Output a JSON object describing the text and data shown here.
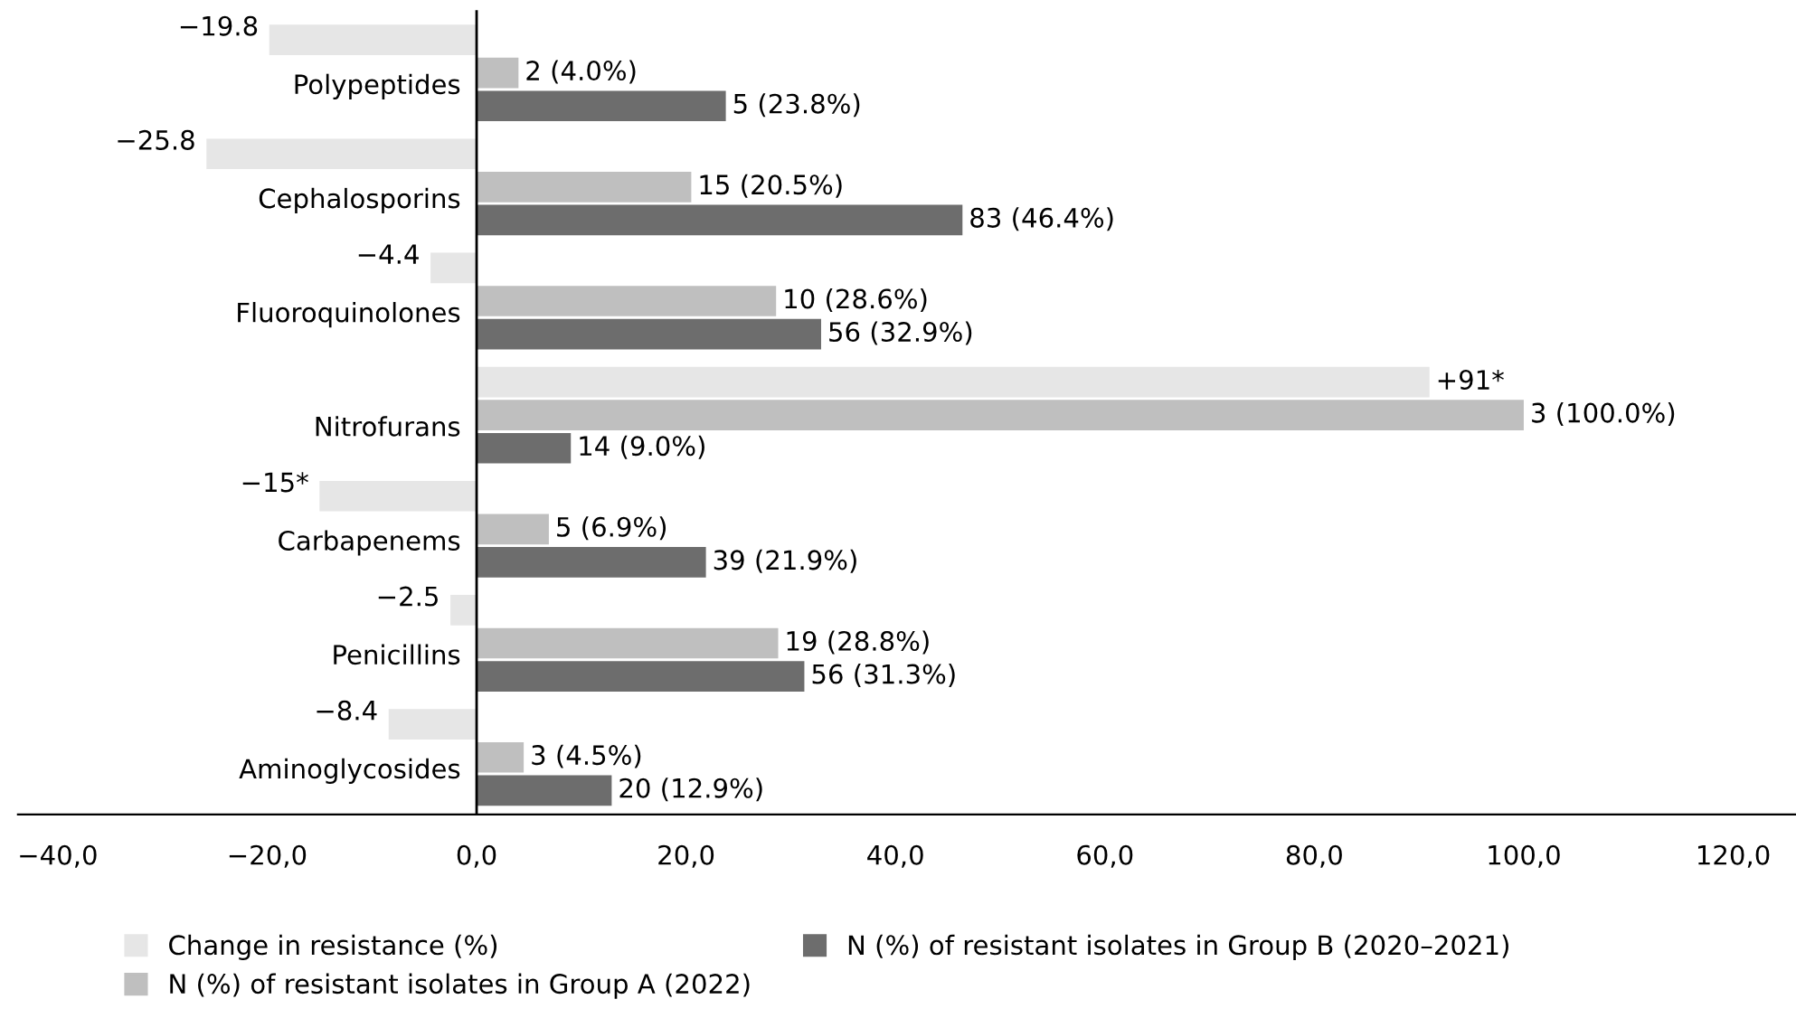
{
  "chart_data": {
    "type": "bar",
    "orientation": "horizontal",
    "categories": [
      "Polypeptides",
      "Cephalosporins",
      "Fluoroquinolones",
      "Nitrofurans",
      "Carbapenems",
      "Penicillins",
      "Aminoglycosides"
    ],
    "series": [
      {
        "name": "Change in resistance (%)",
        "color": "#e6e6e6",
        "values": [
          -19.8,
          -25.8,
          -4.4,
          91,
          -15,
          -2.5,
          -8.4
        ],
        "value_labels": [
          "−19.8",
          "−25.8",
          "−4.4",
          "+91*",
          "−15*",
          "−2.5",
          "−8.4"
        ]
      },
      {
        "name": "N (%) of resistant isolates in Group A (2022)",
        "color": "#bfbfbf",
        "values": [
          4.0,
          20.5,
          28.6,
          100.0,
          6.9,
          28.8,
          4.5
        ],
        "value_labels": [
          "2 (4.0%)",
          "15 (20.5%)",
          "10 (28.6%)",
          "3 (100.0%)",
          "5 (6.9%)",
          "19 (28.8%)",
          "3 (4.5%)"
        ]
      },
      {
        "name": "N (%) of resistant isolates in Group B (2020–2021)",
        "color": "#6d6d6d",
        "values": [
          23.8,
          46.4,
          32.9,
          9.0,
          21.9,
          31.3,
          12.9
        ],
        "value_labels": [
          "5 (23.8%)",
          "83 (46.4%)",
          "56 (32.9%)",
          "14 (9.0%)",
          "39 (21.9%)",
          "56 (31.3%)",
          "20 (12.9%)"
        ]
      }
    ],
    "xlim": [
      -43.8,
      126
    ],
    "xticks": [
      {
        "value": -40,
        "label": "−40,0"
      },
      {
        "value": -20,
        "label": "−20,0"
      },
      {
        "value": 0,
        "label": "0,0"
      },
      {
        "value": 20,
        "label": "20,0"
      },
      {
        "value": 40,
        "label": "40,0"
      },
      {
        "value": 60,
        "label": "60,0"
      },
      {
        "value": 80,
        "label": "80,0"
      },
      {
        "value": 100,
        "label": "100,0"
      },
      {
        "value": 120,
        "label": "120,0"
      }
    ],
    "grid": false,
    "legend": "bottom"
  }
}
